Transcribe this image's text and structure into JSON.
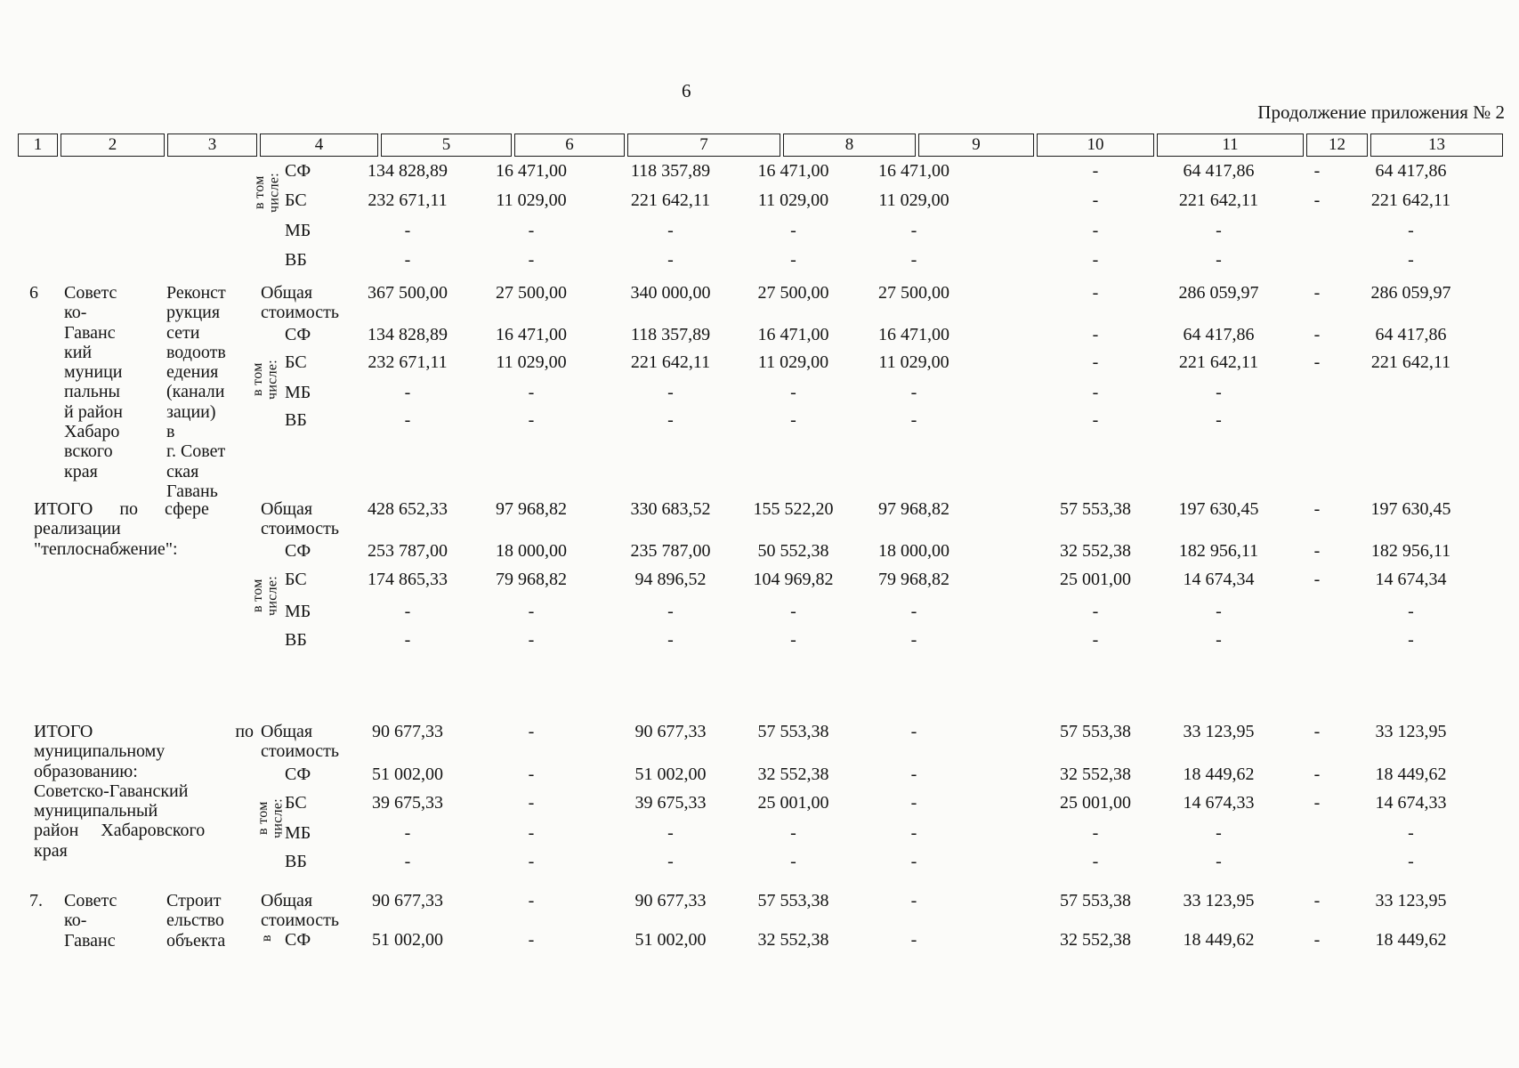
{
  "page": {
    "number": "6",
    "continuation": "Продолжение приложения № 2"
  },
  "table": {
    "column_numbers": [
      "1",
      "2",
      "3",
      "4",
      "5",
      "6",
      "7",
      "8",
      "9",
      "10",
      "11",
      "12",
      "13"
    ],
    "labels": {
      "total_cost": "Общая\nстоимость",
      "in_total": "в том\nчисле:"
    },
    "sections": [
      {
        "name": "carryover-rows",
        "rotated_label": "в том\nчисле:",
        "rows": [
          {
            "label": "СФ",
            "values": [
              "134 828,89",
              "16 471,00",
              "118 357,89",
              "16 471,00",
              "16 471,00",
              "-",
              "64 417,86",
              "-",
              "64 417,86"
            ]
          },
          {
            "label": "БС",
            "values": [
              "232 671,11",
              "11 029,00",
              "221 642,11",
              "11 029,00",
              "11 029,00",
              "-",
              "221 642,11",
              "-",
              "221 642,11"
            ]
          },
          {
            "label": "МБ",
            "values": [
              "-",
              "-",
              "-",
              "-",
              "-",
              "-",
              "-",
              "",
              "-"
            ]
          },
          {
            "label": "ВБ",
            "values": [
              "-",
              "-",
              "-",
              "-",
              "-",
              "-",
              "-",
              "",
              "-"
            ]
          }
        ]
      },
      {
        "name": "project-row-6",
        "col1": "6",
        "col2_lines": [
          "Советс",
          "ко-",
          "Гаванс",
          "кий",
          "муници",
          "пальны",
          "й район",
          "Хабаро",
          "вского",
          "края"
        ],
        "col3_lines": [
          "Реконст",
          "рукция",
          "сети",
          "водоотв",
          "едения",
          "(канали",
          "зации)",
          "в",
          "г. Совет",
          "ская",
          "Гавань"
        ],
        "rotated_label": "в том\nчисле:",
        "total_values": [
          "367 500,00",
          "27 500,00",
          "340 000,00",
          "27 500,00",
          "27 500,00",
          "-",
          "286 059,97",
          "-",
          "286 059,97"
        ],
        "rows": [
          {
            "label": "СФ",
            "values": [
              "134 828,89",
              "16 471,00",
              "118 357,89",
              "16 471,00",
              "16 471,00",
              "-",
              "64 417,86",
              "-",
              "64 417,86"
            ]
          },
          {
            "label": "БС",
            "values": [
              "232 671,11",
              "11 029,00",
              "221 642,11",
              "11 029,00",
              "11 029,00",
              "-",
              "221 642,11",
              "-",
              "221 642,11"
            ]
          },
          {
            "label": "МБ",
            "values": [
              "-",
              "-",
              "-",
              "-",
              "-",
              "-",
              "-",
              "",
              ""
            ]
          },
          {
            "label": "ВБ",
            "values": [
              "-",
              "-",
              "-",
              "-",
              "-",
              "-",
              "-",
              "",
              ""
            ]
          }
        ]
      },
      {
        "name": "total-sphere-heating",
        "span_lines": [
          "ИТОГО      по      сфере",
          "реализации",
          "\"теплоснабжение\":"
        ],
        "rotated_label": "в том\nчисле:",
        "total_values": [
          "428 652,33",
          "97 968,82",
          "330 683,52",
          "155 522,20",
          "97 968,82",
          "57 553,38",
          "197 630,45",
          "-",
          "197 630,45"
        ],
        "rows": [
          {
            "label": "СФ",
            "values": [
              "253 787,00",
              "18 000,00",
              "235 787,00",
              "50 552,38",
              "18 000,00",
              "32 552,38",
              "182 956,11",
              "-",
              "182 956,11"
            ]
          },
          {
            "label": "БС",
            "values": [
              "174 865,33",
              "79 968,82",
              "94 896,52",
              "104 969,82",
              "79 968,82",
              "25 001,00",
              "14 674,34",
              "-",
              "14 674,34"
            ]
          },
          {
            "label": "МБ",
            "values": [
              "-",
              "-",
              "-",
              "-",
              "-",
              "-",
              "-",
              "",
              "-"
            ]
          },
          {
            "label": "ВБ",
            "values": [
              "-",
              "-",
              "-",
              "-",
              "-",
              "-",
              "-",
              "",
              "-"
            ]
          }
        ]
      },
      {
        "name": "total-municipal",
        "span_lines": [
          "ИТОГО                                по",
          "муниципальному",
          "образованию:",
          "Советско-Гаванский",
          "муниципальный",
          "район     Хабаровского",
          "края"
        ],
        "rotated_label": "в том\nчисле:",
        "total_values": [
          "90 677,33",
          "-",
          "90 677,33",
          "57 553,38",
          "-",
          "57 553,38",
          "33 123,95",
          "-",
          "33 123,95"
        ],
        "rows": [
          {
            "label": "СФ",
            "values": [
              "51 002,00",
              "-",
              "51 002,00",
              "32 552,38",
              "-",
              "32 552,38",
              "18 449,62",
              "-",
              "18 449,62"
            ]
          },
          {
            "label": "БС",
            "values": [
              "39 675,33",
              "-",
              "39 675,33",
              "25 001,00",
              "-",
              "25 001,00",
              "14 674,33",
              "-",
              "14 674,33"
            ]
          },
          {
            "label": "МБ",
            "values": [
              "-",
              "-",
              "-",
              "-",
              "-",
              "-",
              "-",
              "",
              "-"
            ]
          },
          {
            "label": "ВБ",
            "values": [
              "-",
              "-",
              "-",
              "-",
              "-",
              "-",
              "-",
              "",
              "-"
            ]
          }
        ]
      },
      {
        "name": "project-row-7",
        "col1": "7.",
        "col2_lines": [
          "Советс",
          "ко-",
          "Гаванс"
        ],
        "col3_lines": [
          "Строит",
          "ельство",
          "объекта"
        ],
        "rotated_label": "в",
        "total_values": [
          "90 677,33",
          "-",
          "90 677,33",
          "57 553,38",
          "-",
          "57 553,38",
          "33 123,95",
          "-",
          "33 123,95"
        ],
        "rows": [
          {
            "label": "СФ",
            "values": [
              "51 002,00",
              "-",
              "51 002,00",
              "32 552,38",
              "-",
              "32 552,38",
              "18 449,62",
              "-",
              "18 449,62"
            ]
          }
        ]
      }
    ]
  }
}
